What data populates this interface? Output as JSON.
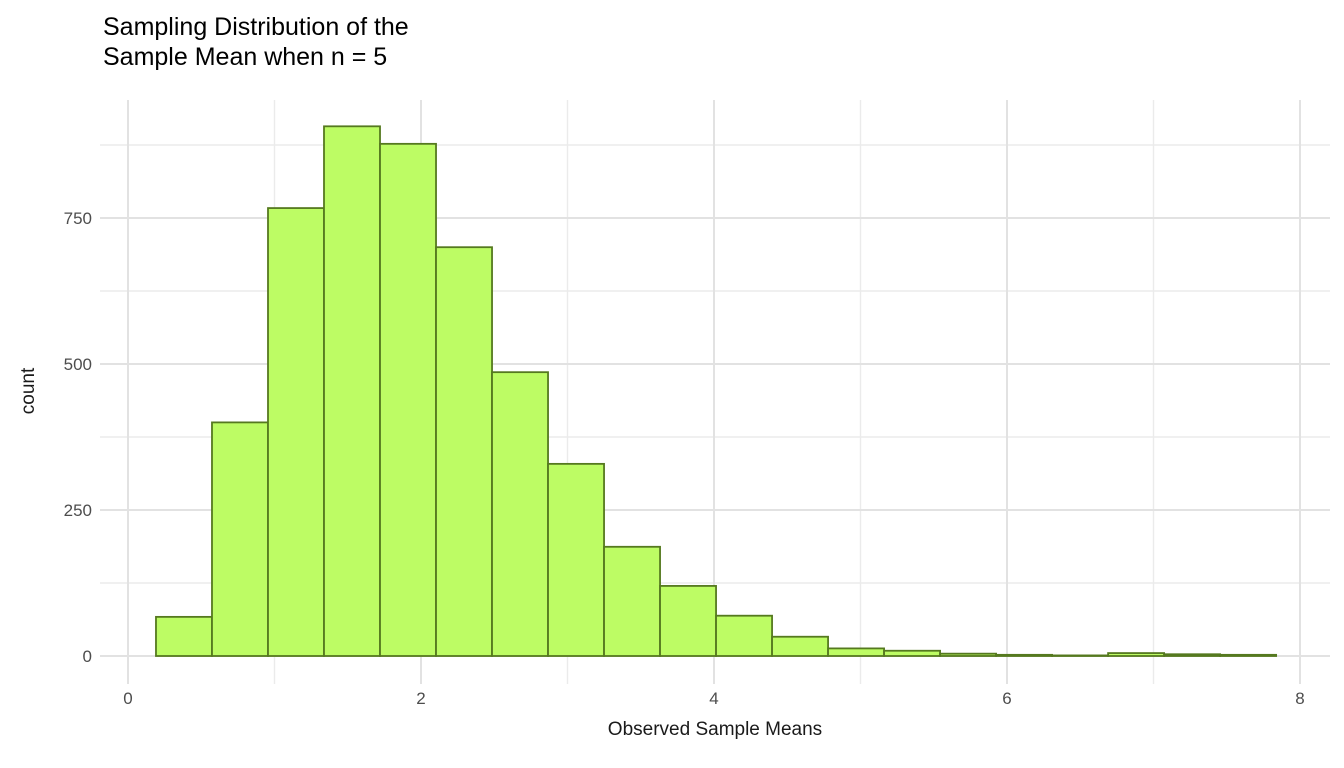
{
  "chart_data": {
    "type": "bar",
    "subtype": "histogram",
    "title": "Sampling Distribution of the\nSample Mean when n = 5",
    "xlabel": "Observed Sample Means",
    "ylabel": "count",
    "x_ticks": [
      0,
      2,
      4,
      6,
      8
    ],
    "x_minor_ticks": [
      1,
      3,
      5,
      7
    ],
    "y_ticks": [
      0,
      250,
      500,
      750
    ],
    "y_minor_ticks": [
      125,
      375,
      625,
      875
    ],
    "xlim": [
      -0.19,
      8.4
    ],
    "ylim": [
      0,
      952
    ],
    "bin_start": 0.191,
    "bin_width": 0.3823,
    "bin_centers": [
      0.38,
      0.76,
      1.15,
      1.53,
      1.91,
      2.29,
      2.68,
      3.06,
      3.44,
      3.82,
      4.2,
      4.59,
      4.97,
      5.35,
      5.73,
      6.12,
      6.5,
      6.88,
      7.26,
      7.65
    ],
    "counts": [
      67,
      400,
      767,
      907,
      877,
      700,
      486,
      329,
      187,
      120,
      69,
      33,
      13,
      9,
      4,
      2,
      1,
      5,
      3,
      2
    ],
    "grid": "major+minor",
    "legend": "none",
    "colors": {
      "bar_fill": "#BDFC64",
      "bar_border": "#55791F",
      "grid_major": "#E2E2E2",
      "grid_minor": "#EBEBEB",
      "tick_label": "#4D4D4D",
      "axis_title": "#1A1A1A",
      "title": "#000000",
      "background": "#FFFFFF"
    }
  }
}
